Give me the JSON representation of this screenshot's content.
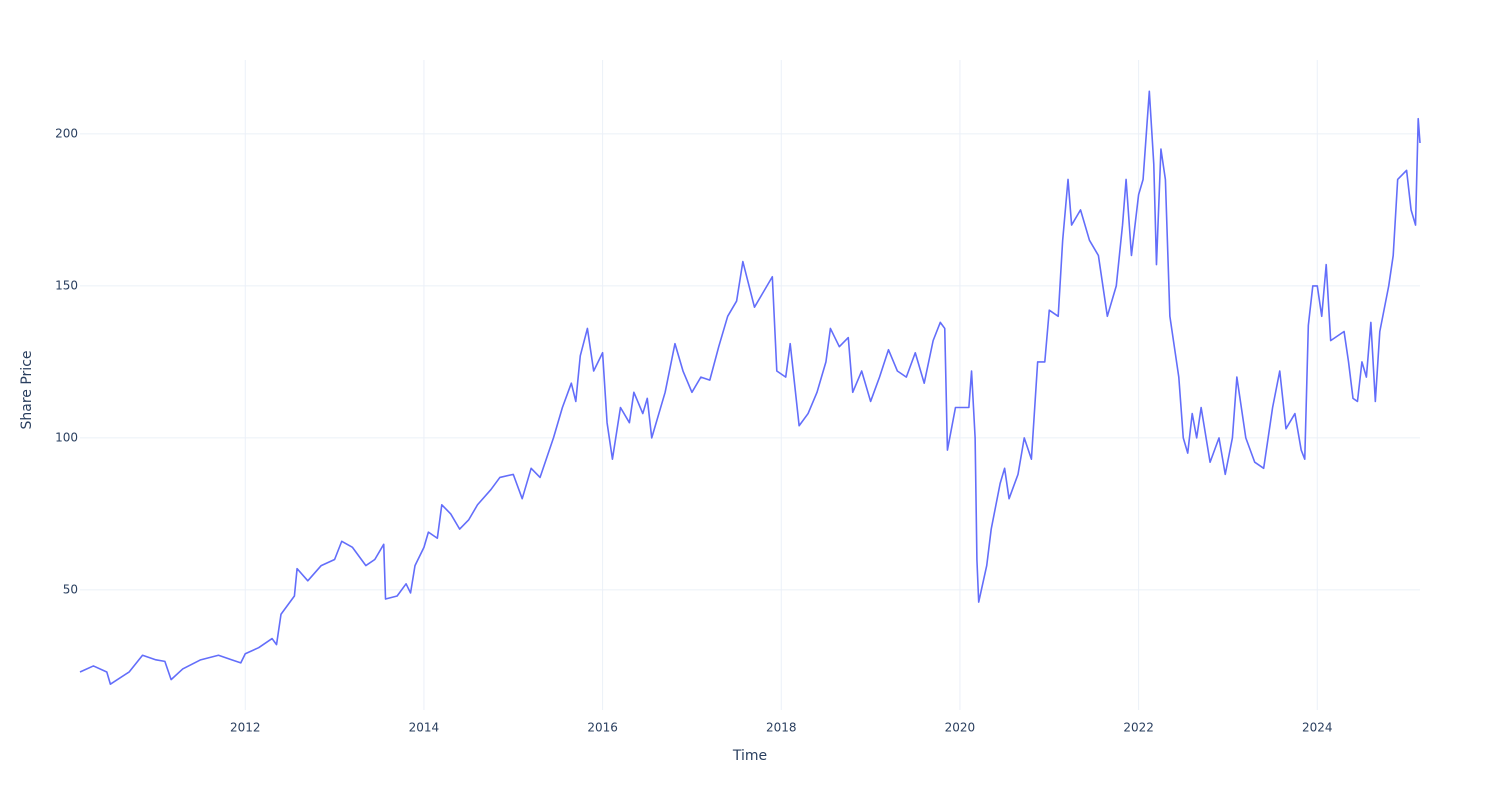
{
  "chart_data": {
    "type": "line",
    "x_label": "Time",
    "y_label": "Share Price",
    "x": [
      2010.15,
      2010.3,
      2010.45,
      2010.49,
      2010.7,
      2010.85,
      2011.0,
      2011.1,
      2011.17,
      2011.3,
      2011.5,
      2011.7,
      2011.85,
      2011.95,
      2012.0,
      2012.15,
      2012.3,
      2012.35,
      2012.4,
      2012.55,
      2012.58,
      2012.7,
      2012.85,
      2013.0,
      2013.08,
      2013.2,
      2013.35,
      2013.45,
      2013.55,
      2013.57,
      2013.7,
      2013.8,
      2013.85,
      2013.9,
      2014.0,
      2014.05,
      2014.15,
      2014.2,
      2014.3,
      2014.4,
      2014.5,
      2014.6,
      2014.75,
      2014.85,
      2015.0,
      2015.1,
      2015.2,
      2015.3,
      2015.45,
      2015.55,
      2015.65,
      2015.7,
      2015.75,
      2015.83,
      2015.9,
      2016.0,
      2016.05,
      2016.11,
      2016.2,
      2016.3,
      2016.35,
      2016.45,
      2016.5,
      2016.55,
      2016.7,
      2016.81,
      2016.9,
      2017.0,
      2017.1,
      2017.2,
      2017.3,
      2017.4,
      2017.5,
      2017.57,
      2017.7,
      2017.8,
      2017.9,
      2017.95,
      2018.05,
      2018.1,
      2018.2,
      2018.3,
      2018.4,
      2018.5,
      2018.55,
      2018.65,
      2018.75,
      2018.8,
      2018.9,
      2019.0,
      2019.1,
      2019.2,
      2019.3,
      2019.4,
      2019.5,
      2019.6,
      2019.7,
      2019.78,
      2019.83,
      2019.86,
      2019.95,
      2020.1,
      2020.13,
      2020.17,
      2020.19,
      2020.21,
      2020.3,
      2020.35,
      2020.45,
      2020.5,
      2020.55,
      2020.65,
      2020.72,
      2020.8,
      2020.87,
      2020.95,
      2021.0,
      2021.1,
      2021.15,
      2021.21,
      2021.25,
      2021.35,
      2021.45,
      2021.55,
      2021.65,
      2021.75,
      2021.82,
      2021.86,
      2021.92,
      2022.0,
      2022.05,
      2022.12,
      2022.17,
      2022.2,
      2022.25,
      2022.3,
      2022.35,
      2022.4,
      2022.45,
      2022.5,
      2022.55,
      2022.6,
      2022.65,
      2022.7,
      2022.8,
      2022.9,
      2022.97,
      2023.05,
      2023.1,
      2023.2,
      2023.3,
      2023.4,
      2023.5,
      2023.58,
      2023.65,
      2023.75,
      2023.82,
      2023.86,
      2023.9,
      2023.95,
      2024.0,
      2024.05,
      2024.1,
      2024.15,
      2024.3,
      2024.35,
      2024.4,
      2024.45,
      2024.5,
      2024.55,
      2024.6,
      2024.65,
      2024.7,
      2024.8,
      2024.85,
      2024.9,
      2025.0,
      2025.05,
      2025.1,
      2025.13,
      2025.15
    ],
    "series": [
      {
        "name": "Share Price",
        "color": "#636efa",
        "values": [
          23,
          25,
          23,
          19,
          23,
          28.5,
          27,
          26.5,
          20.5,
          24,
          27,
          28.5,
          27,
          26,
          29,
          31,
          34,
          32,
          42,
          48,
          57,
          53,
          58,
          60,
          66,
          64,
          58,
          60,
          65,
          47,
          48,
          52,
          49,
          58,
          64,
          69,
          67,
          78,
          75,
          70,
          73,
          78,
          83,
          87,
          88,
          80,
          90,
          87,
          100,
          110,
          118,
          112,
          127,
          136,
          122,
          128,
          105,
          93,
          110,
          105,
          115,
          108,
          113,
          100,
          115,
          131,
          122,
          115,
          120,
          119,
          130,
          140,
          145,
          158,
          143,
          148,
          153,
          122,
          120,
          131,
          104,
          108,
          115,
          125,
          136,
          130,
          133,
          115,
          122,
          112,
          120,
          129,
          122,
          120,
          128,
          118,
          132,
          138,
          136,
          96,
          110,
          110,
          122,
          100,
          60,
          46,
          58,
          70,
          85,
          90,
          80,
          88,
          100,
          93,
          125,
          125,
          142,
          140,
          165,
          185,
          170,
          175,
          165,
          160,
          140,
          150,
          170,
          185,
          160,
          180,
          185,
          214,
          190,
          157,
          195,
          185,
          140,
          130,
          120,
          100,
          95,
          108,
          100,
          110,
          92,
          100,
          88,
          100,
          120,
          100,
          92,
          90,
          110,
          122,
          103,
          108,
          96,
          93,
          137,
          150,
          150,
          140,
          157,
          132,
          135,
          125,
          113,
          112,
          125,
          120,
          138,
          112,
          135,
          150,
          160,
          185,
          188,
          175,
          170,
          205,
          197
        ]
      }
    ],
    "xlim": [
      2010.15,
      2025.15
    ],
    "xticks": [
      2012,
      2014,
      2016,
      2018,
      2020,
      2022,
      2024
    ],
    "ylim": [
      10.5,
      224.3
    ],
    "yticks": [
      50,
      100,
      150,
      200
    ],
    "grid": true
  }
}
